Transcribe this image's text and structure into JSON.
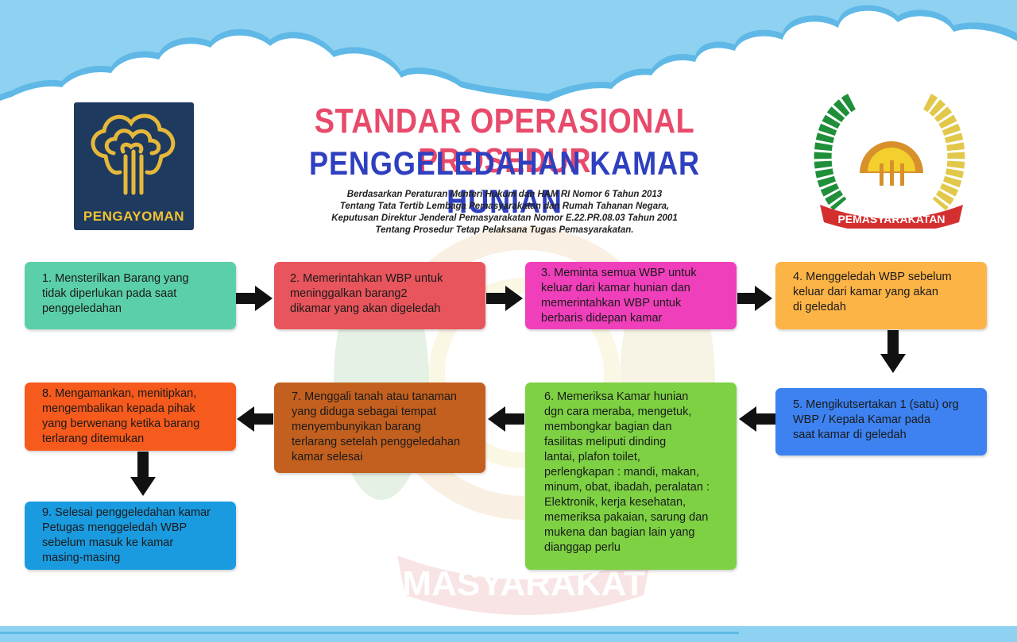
{
  "header": {
    "title_line1": "STANDAR OPERASIONAL PROSEDUR",
    "title_line2": "PENGGELEDAHAN KAMAR HUNIAN",
    "subtitle_lines": [
      "Berdasarkan Peraturan Menteri Hukum dan HAM RI Nomor 6 Tahun 2013",
      "Tentang Tata Tertib Lembaga Pemasyarakatan dan Rumah Tahanan Negara,",
      "Keputusan Direktur Jenderal Pemasyarakatan Nomor E.22.PR.08.03 Tahun 2001",
      "Tentang Prosedur Tetap Pelaksana Tugas Pemasyarakatan."
    ]
  },
  "logos": {
    "left_text": "PENGAYOMAN",
    "right_text": "PEMASYARAKATAN",
    "watermark_text": "PEMASYARAKATAN"
  },
  "steps": [
    {
      "label": "1. Mensterilkan Barang yang\n    tidak diperlukan pada saat\n    penggeledahan",
      "color": "#5bcfa9"
    },
    {
      "label": "2. Memerintahkan WBP untuk\n    meninggalkan barang2\n    dikamar yang akan digeledah",
      "color": "#e8555c"
    },
    {
      "label": "3. Meminta semua WBP untuk\n    keluar dari kamar hunian dan\n    memerintahkan WBP untuk\n    berbaris didepan kamar",
      "color": "#f03fbb"
    },
    {
      "label": "4. Menggeledah WBP sebelum\n    keluar dari kamar yang akan\n    di geledah",
      "color": "#fdb447"
    },
    {
      "label": "5. Mengikutsertakan 1 (satu) org\n    WBP / Kepala Kamar pada\n    saat kamar di geledah",
      "color": "#3d82f0"
    },
    {
      "label": "6. Memeriksa Kamar hunian\n    dgn cara meraba, mengetuk,\n    membongkar bagian dan\n    fasilitas meliputi dinding\n    lantai, plafon toilet,\n    perlengkapan : mandi, makan,\n    minum, obat, ibadah, peralatan :\n    Elektronik, kerja kesehatan,\n    memeriksa pakaian, sarung dan\n    mukena dan bagian lain yang\n    dianggap perlu",
      "color": "#7dd143"
    },
    {
      "label": "7. Menggali tanah atau tanaman\n    yang diduga sebagai tempat\n    menyembunyikan barang\n    terlarang setelah penggeledahan\n    kamar selesai",
      "color": "#c3601f"
    },
    {
      "label": "8. Mengamankan, menitipkan,\n    mengembalikan kepada pihak\n    yang berwenang ketika barang\n    terlarang ditemukan",
      "color": "#f65a1c"
    },
    {
      "label": "9. Selesai penggeledahan kamar\n    Petugas menggeledah WBP\n    sebelum masuk ke kamar\n    masing-masing",
      "color": "#1a9be0"
    }
  ],
  "colors": {
    "sky": "#8ed1f1",
    "title_pink": "#e84a6b",
    "title_blue": "#2e3fbf",
    "arrow": "#111111"
  }
}
